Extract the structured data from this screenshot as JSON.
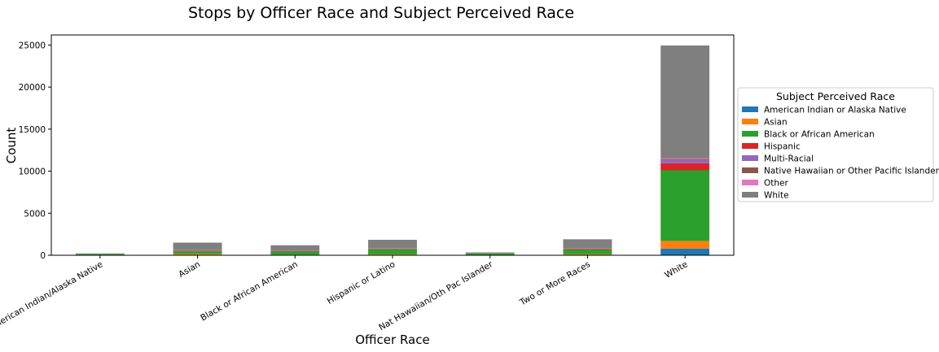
{
  "chart_data": {
    "type": "bar",
    "stacked": true,
    "title": "Stops by Officer Race and Subject Perceived Race",
    "xlabel": "Officer Race",
    "ylabel": "Count",
    "ylim": [
      0,
      26200
    ],
    "yticks": [
      0,
      5000,
      10000,
      15000,
      20000,
      25000
    ],
    "categories": [
      "American Indian/Alaska Native",
      "Asian",
      "Black or African American",
      "Hispanic or Latino",
      "Nat Hawaiian/Oth Pac Islander",
      "Two or More Races",
      "White"
    ],
    "legend_title": "Subject Perceived Race",
    "legend_position": "right, outside plot",
    "grid": false,
    "series": [
      {
        "name": "American Indian or Alaska Native",
        "color": "#1f77b4",
        "values": [
          10,
          40,
          30,
          50,
          10,
          50,
          800
        ]
      },
      {
        "name": "Asian",
        "color": "#ff7f0e",
        "values": [
          10,
          120,
          30,
          60,
          20,
          80,
          900
        ]
      },
      {
        "name": "Black or African American",
        "color": "#2ca02c",
        "values": [
          120,
          300,
          380,
          600,
          180,
          550,
          8400
        ]
      },
      {
        "name": "Hispanic",
        "color": "#d62728",
        "values": [
          10,
          40,
          50,
          60,
          10,
          80,
          850
        ]
      },
      {
        "name": "Multi-Racial",
        "color": "#9467bd",
        "values": [
          5,
          20,
          10,
          20,
          5,
          30,
          400
        ]
      },
      {
        "name": "Native Hawaiian or Other Pacific Islander",
        "color": "#8c564b",
        "values": [
          5,
          60,
          30,
          30,
          10,
          60,
          100
        ]
      },
      {
        "name": "Other",
        "color": "#e377c2",
        "values": [
          5,
          20,
          10,
          20,
          5,
          20,
          100
        ]
      },
      {
        "name": "White",
        "color": "#7f7f7f",
        "values": [
          60,
          900,
          650,
          1000,
          100,
          1030,
          13400
        ]
      }
    ]
  }
}
